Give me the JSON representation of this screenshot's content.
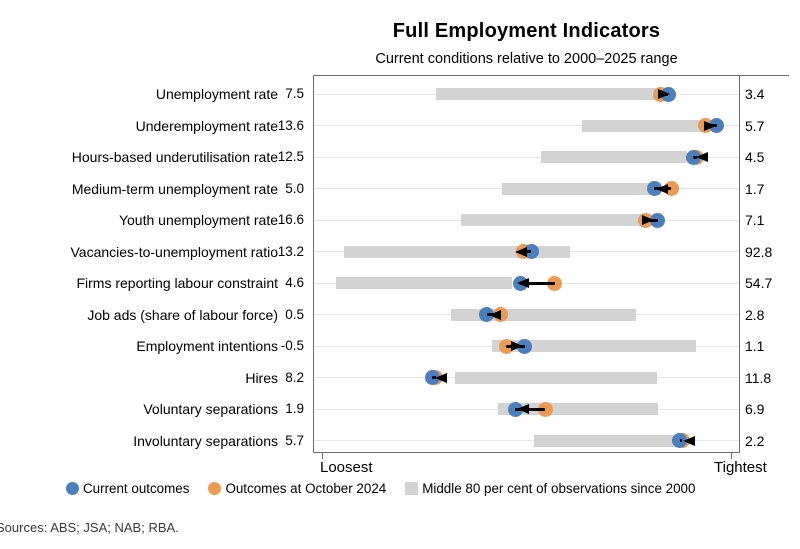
{
  "sources": "Sources: ABS; JSA; NAB; RBA.",
  "colors": {
    "current": "#4a7ebc",
    "october": "#ec9a52",
    "band": "#d3d3d3",
    "grid": "#e7e7e7",
    "axis": "#6f6f6f",
    "arrow": "#000000"
  },
  "chart_data": {
    "type": "dumbbell_range",
    "title": "Full Employment Indicators",
    "subtitle": "Current conditions relative to 2000–2025 range",
    "x_axis": {
      "min_label": "Loosest",
      "max_label": "Tightest",
      "scale": "position within 2000–2025 observed range, per cent of span",
      "range_pct": [
        0,
        100
      ],
      "grid": true
    },
    "legend": {
      "position": "bottom",
      "current": "Current outcomes",
      "october": "Outcomes at October 2024",
      "band": "Middle 80 per cent of observations since 2000"
    },
    "rows": [
      {
        "label": "Unemployment rate",
        "loosest_value": "7.5",
        "tightest_value": "3.4",
        "band_pct": [
          28.7,
          82.1
        ],
        "october_pct": 81.6,
        "current_pct": 83.3,
        "arrow_tip_pct": 83.8,
        "arrow_dir": "right"
      },
      {
        "label": "Underemployment rate",
        "loosest_value": "13.6",
        "tightest_value": "5.7",
        "band_pct": [
          63.1,
          92.9
        ],
        "october_pct": 92.2,
        "current_pct": 94.8,
        "arrow_tip_pct": 94.6,
        "arrow_dir": "right"
      },
      {
        "label": "Hours-based underutilisation rate",
        "loosest_value": "12.5",
        "tightest_value": "4.5",
        "band_pct": [
          53.4,
          87.8
        ],
        "october_pct": 90.1,
        "current_pct": 89.2,
        "arrow_tip_pct": 89.9,
        "arrow_dir": "left"
      },
      {
        "label": "Medium-term unemployment rate",
        "loosest_value": "5.0",
        "tightest_value": "1.7",
        "band_pct": [
          44.2,
          81.6
        ],
        "october_pct": 84.0,
        "current_pct": 80.0,
        "arrow_tip_pct": 80.5,
        "arrow_dir": "left"
      },
      {
        "label": "Youth unemployment rate",
        "loosest_value": "16.6",
        "tightest_value": "7.1",
        "band_pct": [
          34.6,
          79.5
        ],
        "october_pct": 77.9,
        "current_pct": 80.9,
        "arrow_tip_pct": 80.0,
        "arrow_dir": "right"
      },
      {
        "label": "Vacancies-to-unemployment ratio",
        "loosest_value": "13.2",
        "tightest_value": "92.8",
        "band_pct": [
          7.1,
          60.2
        ],
        "october_pct": 49.4,
        "current_pct": 51.1,
        "arrow_tip_pct": 47.3,
        "arrow_dir": "left"
      },
      {
        "label": "Firms reporting labour constraint",
        "loosest_value": "4.6",
        "tightest_value": "54.7",
        "band_pct": [
          5.2,
          46.6
        ],
        "october_pct": 56.7,
        "current_pct": 48.5,
        "arrow_tip_pct": 47.8,
        "arrow_dir": "left"
      },
      {
        "label": "Job ads (share of labour force)",
        "loosest_value": "0.5",
        "tightest_value": "2.8",
        "band_pct": [
          32.2,
          75.8
        ],
        "october_pct": 43.8,
        "current_pct": 40.7,
        "arrow_tip_pct": 41.2,
        "arrow_dir": "left"
      },
      {
        "label": "Employment intentions",
        "loosest_value": "-0.5",
        "tightest_value": "1.1",
        "band_pct": [
          41.9,
          89.9
        ],
        "october_pct": 45.2,
        "current_pct": 49.6,
        "arrow_tip_pct": 49.2,
        "arrow_dir": "right"
      },
      {
        "label": "Hires",
        "loosest_value": "8.2",
        "tightest_value": "11.8",
        "band_pct": [
          33.2,
          80.7
        ],
        "october_pct": 28.7,
        "current_pct": 27.8,
        "arrow_tip_pct": 28.5,
        "arrow_dir": "left"
      },
      {
        "label": "Voluntary separations",
        "loosest_value": "1.9",
        "tightest_value": "6.9",
        "band_pct": [
          43.3,
          80.9
        ],
        "october_pct": 54.4,
        "current_pct": 47.3,
        "arrow_tip_pct": 47.8,
        "arrow_dir": "left"
      },
      {
        "label": "Involuntary separations",
        "loosest_value": "5.7",
        "tightest_value": "2.2",
        "band_pct": [
          51.8,
          85.4
        ],
        "october_pct": 86.6,
        "current_pct": 86.1,
        "arrow_tip_pct": 86.8,
        "arrow_dir": "left"
      }
    ]
  }
}
